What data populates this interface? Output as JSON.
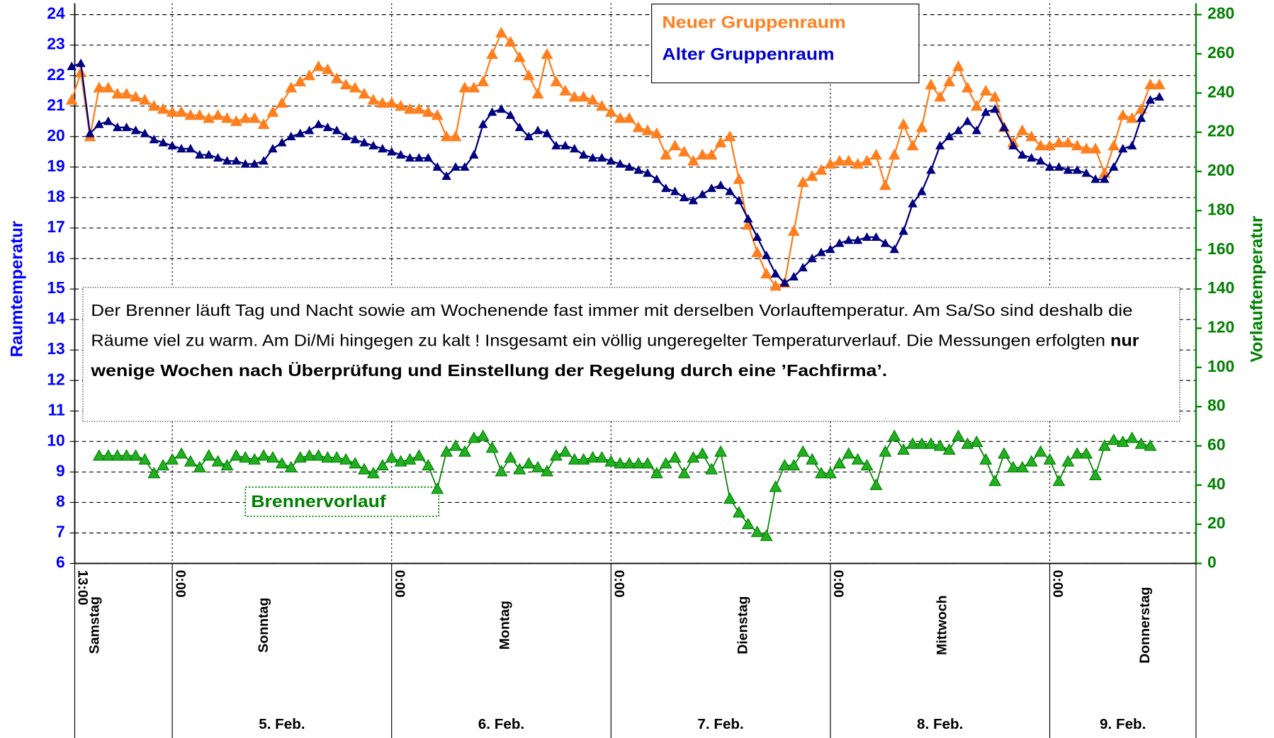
{
  "chart_data": {
    "type": "line",
    "ylabel": "Raumtemperatur",
    "y2label": "Vorlauftemperatur",
    "categories": [
      "13:00",
      null,
      null,
      null,
      null,
      null,
      null,
      null,
      null,
      null,
      null,
      "0:00",
      null,
      null,
      null,
      null,
      null,
      null,
      null,
      null,
      null,
      null,
      null,
      null,
      null,
      null,
      null,
      null,
      null,
      null,
      null,
      null,
      null,
      null,
      null,
      "0:00",
      null,
      null,
      null,
      null,
      null,
      null,
      null,
      null,
      null,
      null,
      null,
      null,
      null,
      null,
      null,
      null,
      null,
      null,
      null,
      null,
      null,
      null,
      null,
      "0:00",
      null,
      null,
      null,
      null,
      null,
      null,
      null,
      null,
      null,
      null,
      null,
      null,
      null,
      null,
      null,
      null,
      null,
      null,
      null,
      null,
      null,
      null,
      null,
      "0:00",
      null,
      null,
      null,
      null,
      null,
      null,
      null,
      null,
      null,
      null,
      null,
      null,
      null,
      null,
      null,
      null,
      null,
      null,
      null,
      null,
      null,
      null,
      null,
      "0:00",
      null,
      null,
      null,
      null,
      null,
      null,
      null,
      null,
      null,
      null,
      null,
      null
    ],
    "day_names": [
      "Samstag",
      "Sonntag",
      "Montag",
      "Dienstag",
      "Mittwoch",
      "Donnerstag"
    ],
    "dates": [
      null,
      "5. Feb.",
      "6. Feb.",
      "7. Feb.",
      "8. Feb.",
      "9. Feb."
    ],
    "series": [
      {
        "name": "Neuer Gruppenraum",
        "color": "#ff7f1e",
        "values": [
          21.2,
          22.1,
          20.0,
          21.6,
          21.6,
          21.4,
          21.4,
          21.3,
          21.2,
          21.0,
          20.9,
          20.8,
          20.8,
          20.7,
          20.7,
          20.6,
          20.7,
          20.6,
          20.5,
          20.6,
          20.6,
          20.4,
          20.8,
          21.1,
          21.6,
          21.8,
          22.0,
          22.3,
          22.2,
          21.9,
          21.7,
          21.6,
          21.4,
          21.2,
          21.1,
          21.1,
          21.0,
          20.9,
          20.9,
          20.8,
          20.7,
          20.0,
          20.0,
          21.6,
          21.6,
          21.8,
          22.7,
          23.4,
          23.1,
          22.6,
          22.0,
          21.4,
          22.7,
          21.8,
          21.5,
          21.3,
          21.3,
          21.2,
          21.0,
          20.8,
          20.6,
          20.6,
          20.3,
          20.2,
          20.1,
          19.4,
          19.7,
          19.5,
          19.2,
          19.4,
          19.4,
          19.8,
          20.0,
          18.6,
          17.1,
          16.2,
          15.5,
          15.1,
          15.2,
          16.9,
          18.5,
          18.7,
          18.9,
          19.1,
          19.2,
          19.2,
          19.1,
          19.2,
          19.4,
          18.4,
          19.4,
          20.4,
          19.7,
          20.3,
          21.7,
          21.3,
          21.8,
          22.3,
          21.6,
          21.0,
          21.5,
          21.3,
          20.3,
          19.8,
          20.2,
          20.0,
          19.7,
          19.7,
          19.8,
          19.8,
          19.7,
          19.6,
          19.6,
          18.8,
          19.7,
          20.7,
          20.6,
          20.9,
          21.7,
          21.7
        ]
      },
      {
        "name": "Alter Gruppenraum",
        "color": "#000080",
        "values": [
          22.3,
          22.4,
          20.1,
          20.4,
          20.5,
          20.3,
          20.3,
          20.2,
          20.1,
          19.9,
          19.8,
          19.7,
          19.6,
          19.6,
          19.4,
          19.4,
          19.3,
          19.2,
          19.2,
          19.1,
          19.1,
          19.2,
          19.6,
          19.8,
          20.0,
          20.1,
          20.2,
          20.4,
          20.3,
          20.2,
          20.0,
          19.9,
          19.8,
          19.7,
          19.6,
          19.5,
          19.4,
          19.3,
          19.3,
          19.3,
          19.0,
          18.7,
          19.0,
          19.0,
          19.4,
          20.4,
          20.8,
          20.9,
          20.7,
          20.3,
          20.0,
          20.2,
          20.1,
          19.7,
          19.7,
          19.6,
          19.4,
          19.3,
          19.3,
          19.2,
          19.1,
          19.0,
          18.9,
          18.8,
          18.6,
          18.3,
          18.2,
          18.0,
          17.9,
          18.1,
          18.3,
          18.4,
          18.2,
          17.9,
          17.3,
          16.7,
          16.1,
          15.5,
          15.2,
          15.4,
          15.7,
          16.0,
          16.2,
          16.3,
          16.5,
          16.6,
          16.6,
          16.7,
          16.7,
          16.5,
          16.3,
          16.9,
          17.8,
          18.2,
          18.9,
          19.7,
          20.0,
          20.2,
          20.5,
          20.2,
          20.8,
          20.9,
          20.3,
          19.7,
          19.4,
          19.3,
          19.2,
          19.0,
          19.0,
          18.9,
          18.9,
          18.8,
          18.6,
          18.6,
          19.0,
          19.6,
          19.7,
          20.6,
          21.2,
          21.3
        ]
      },
      {
        "name": "Brennervorlauf",
        "color": "#008000",
        "axis": "y2",
        "values": [
          null,
          null,
          null,
          55,
          55,
          55,
          55,
          55,
          53,
          46,
          50,
          53,
          56,
          52,
          49,
          55,
          52,
          50,
          55,
          54,
          53,
          55,
          54,
          51,
          49,
          54,
          55,
          55,
          54,
          54,
          53,
          51,
          48,
          46,
          50,
          54,
          52,
          53,
          55,
          50,
          38,
          57,
          60,
          57,
          64,
          65,
          59,
          47,
          54,
          48,
          51,
          49,
          47,
          55,
          57,
          53,
          53,
          54,
          54,
          52,
          51,
          51,
          51,
          51,
          46,
          51,
          54,
          46,
          54,
          56,
          48,
          57,
          33,
          26,
          20,
          16,
          14,
          39,
          50,
          50,
          57,
          53,
          46,
          46,
          51,
          56,
          53,
          50,
          40,
          57,
          65,
          58,
          61,
          61,
          61,
          60,
          58,
          65,
          61,
          62,
          53,
          42,
          56,
          49,
          49,
          52,
          57,
          53,
          42,
          52,
          56,
          56,
          45,
          60,
          63,
          62,
          64,
          61,
          60,
          null
        ]
      }
    ],
    "ylim": [
      6,
      24
    ],
    "yticks": [
      6,
      7,
      8,
      9,
      10,
      11,
      12,
      13,
      14,
      15,
      16,
      17,
      18,
      19,
      20,
      21,
      22,
      23,
      24
    ],
    "y2lim": [
      0,
      280
    ],
    "y2ticks": [
      0,
      20,
      40,
      60,
      80,
      100,
      120,
      140,
      160,
      180,
      200,
      220,
      240,
      260,
      280
    ],
    "grid": true,
    "note": [
      [
        {
          "text": "Der Brenner läuft Tag und Nacht sowie am Wochenende fast immer mit derselben Vorlauftemperatur. Am Sa/So sind deshalb die",
          "bold": false
        }
      ],
      [
        {
          "text": "Räume viel zu warm. Am Di/Mi hingegen zu kalt ! Insgesamt ein völlig ungeregelter Temperaturverlauf.  Die Messungen erfolgten ",
          "bold": false
        },
        {
          "text": "nur",
          "bold": true
        }
      ],
      [
        {
          "text": "wenige Wochen nach Überprüfung und Einstellung der Regelung durch eine ’Fachfirma’.",
          "bold": true
        }
      ]
    ]
  }
}
